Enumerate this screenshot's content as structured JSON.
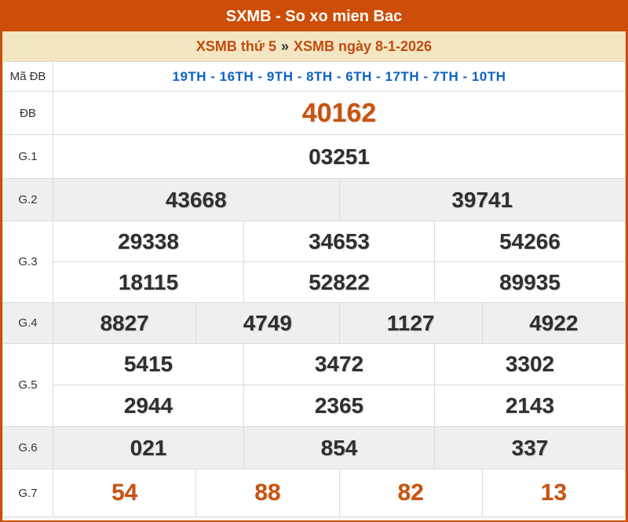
{
  "header": {
    "title": "SXMB - So xo mien Bac"
  },
  "breadcrumb": {
    "left": "XSMB thứ 5",
    "separator": "»",
    "right": "XSMB ngày 8-1-2026"
  },
  "colors": {
    "accent_orange": "#cc4e08",
    "cream": "#f2e7c2",
    "blue_code": "#0e62c2",
    "number_dark": "#2f2f2f",
    "number_orange": "#c9530e",
    "row_shade": "#efefef",
    "cell_border": "#dbdbdb"
  },
  "table": {
    "label_column_width": 63,
    "rows": [
      {
        "id": "ma-db",
        "label": "Mã ĐB",
        "style": "code",
        "shade": false,
        "heights": [
          38
        ],
        "lines": [
          [
            "19TH - 16TH - 9TH - 8TH - 6TH - 17TH - 7TH - 10TH"
          ]
        ]
      },
      {
        "id": "db",
        "label": "ĐB",
        "style": "num-xl",
        "shade": false,
        "heights": [
          55
        ],
        "lines": [
          [
            "40162"
          ]
        ]
      },
      {
        "id": "g1",
        "label": "G.1",
        "style": "num",
        "shade": false,
        "heights": [
          56
        ],
        "lines": [
          [
            "03251"
          ]
        ]
      },
      {
        "id": "g2",
        "label": "G.2",
        "style": "num",
        "shade": true,
        "heights": [
          54
        ],
        "lines": [
          [
            "43668",
            "39741"
          ]
        ]
      },
      {
        "id": "g3",
        "label": "G.3",
        "style": "num",
        "shade": false,
        "heights": [
          52,
          52
        ],
        "lines": [
          [
            "29338",
            "34653",
            "54266"
          ],
          [
            "18115",
            "52822",
            "89935"
          ]
        ]
      },
      {
        "id": "g4",
        "label": "G.4",
        "style": "num",
        "shade": true,
        "heights": [
          52
        ],
        "lines": [
          [
            "8827",
            "4749",
            "1127",
            "4922"
          ]
        ]
      },
      {
        "id": "g5",
        "label": "G.5",
        "style": "num",
        "shade": false,
        "heights": [
          53,
          53
        ],
        "lines": [
          [
            "5415",
            "3472",
            "3302"
          ],
          [
            "2944",
            "2365",
            "2143"
          ]
        ]
      },
      {
        "id": "g6",
        "label": "G.6",
        "style": "num",
        "shade": true,
        "heights": [
          54
        ],
        "lines": [
          [
            "021",
            "854",
            "337"
          ]
        ]
      },
      {
        "id": "g7",
        "label": "G.7",
        "style": "num-orange",
        "shade": false,
        "heights": [
          61
        ],
        "lines": [
          [
            "54",
            "88",
            "82",
            "13"
          ]
        ]
      }
    ]
  }
}
